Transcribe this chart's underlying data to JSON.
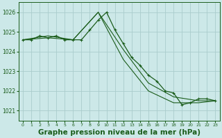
{
  "bg_color": "#cce8e8",
  "grid_color": "#aacccc",
  "line_color": "#1a5c1a",
  "marker_color": "#1a5c1a",
  "xlabel": "Graphe pression niveau de la mer (hPa)",
  "xlabel_fontsize": 7.5,
  "ylim": [
    1020.5,
    1026.5
  ],
  "yticks": [
    1021,
    1022,
    1023,
    1024,
    1025,
    1026
  ],
  "xticks": [
    0,
    1,
    2,
    3,
    4,
    5,
    6,
    7,
    8,
    9,
    10,
    11,
    12,
    13,
    14,
    15,
    16,
    17,
    18,
    19,
    20,
    21,
    22,
    23
  ],
  "xlim": [
    -0.5,
    23.5
  ],
  "series": [
    {
      "x": [
        0,
        1,
        2,
        3,
        4,
        5,
        6,
        7,
        8,
        9,
        10,
        11,
        12,
        13,
        14,
        15,
        16,
        17,
        18,
        19,
        20,
        21,
        22,
        23
      ],
      "y": [
        1024.6,
        1024.6,
        1024.8,
        1024.7,
        1024.8,
        1024.6,
        1024.6,
        1024.6,
        1025.1,
        1025.6,
        1026.0,
        1025.1,
        1024.4,
        1023.7,
        1023.3,
        1022.8,
        1022.5,
        1022.0,
        1021.9,
        1021.3,
        1021.4,
        1021.6,
        1021.6,
        1021.5
      ]
    },
    {
      "x": [
        0,
        3,
        6,
        9,
        12,
        15,
        18,
        21,
        23
      ],
      "y": [
        1024.6,
        1024.7,
        1024.6,
        1026.0,
        1023.6,
        1022.0,
        1021.4,
        1021.4,
        1021.5
      ]
    },
    {
      "x": [
        0,
        3,
        6,
        9,
        12,
        15,
        18,
        21,
        23
      ],
      "y": [
        1024.6,
        1024.8,
        1024.6,
        1026.0,
        1024.1,
        1022.4,
        1021.7,
        1021.5,
        1021.5
      ]
    }
  ]
}
